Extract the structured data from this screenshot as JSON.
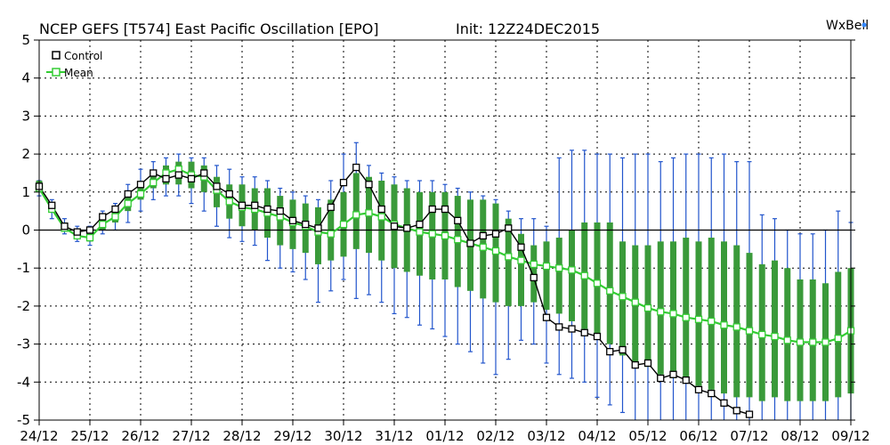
{
  "header": {
    "title": "NCEP GEFS [T574] East Pacific Oscillation [EPO]",
    "init": "Init: 12Z24DEC2015",
    "brand": "WxBell"
  },
  "colors": {
    "control": "#000000",
    "mean": "#33cc33",
    "spread_bar": "#3a9a3a",
    "whisker": "#2255cc",
    "grid": "#000000"
  },
  "legend": {
    "control_label": "Control",
    "mean_label": "Mean"
  },
  "chart_data": {
    "type": "line",
    "title": "NCEP GEFS [T574] East Pacific Oscillation [EPO]",
    "xlabel": "",
    "ylabel": "",
    "xlim": [
      0,
      64
    ],
    "ylim": [
      -5,
      5
    ],
    "grid": true,
    "legend_position": "top-left",
    "x_ticks": [
      {
        "x": 0,
        "label": "24/12"
      },
      {
        "x": 4,
        "label": "25/12"
      },
      {
        "x": 8,
        "label": "26/12"
      },
      {
        "x": 12,
        "label": "27/12"
      },
      {
        "x": 16,
        "label": "28/12"
      },
      {
        "x": 20,
        "label": "29/12"
      },
      {
        "x": 24,
        "label": "30/12"
      },
      {
        "x": 28,
        "label": "31/12"
      },
      {
        "x": 32,
        "label": "01/12"
      },
      {
        "x": 36,
        "label": "02/12"
      },
      {
        "x": 40,
        "label": "03/12"
      },
      {
        "x": 44,
        "label": "04/12"
      },
      {
        "x": 48,
        "label": "05/12"
      },
      {
        "x": 52,
        "label": "06/12"
      },
      {
        "x": 56,
        "label": "07/12"
      },
      {
        "x": 60,
        "label": "08/12"
      },
      {
        "x": 64,
        "label": "09/12"
      }
    ],
    "y_ticks": [
      -5,
      -4,
      -3,
      -2,
      -1,
      0,
      1,
      2,
      3,
      4,
      5
    ],
    "series": [
      {
        "name": "Control",
        "x": [
          0,
          1,
          2,
          3,
          4,
          5,
          6,
          7,
          8,
          9,
          10,
          11,
          12,
          13,
          14,
          15,
          16,
          17,
          18,
          19,
          20,
          21,
          22,
          23,
          24,
          25,
          26,
          27,
          28,
          29,
          30,
          31,
          32,
          33,
          34,
          35,
          36,
          37,
          38,
          39,
          40,
          41,
          42,
          43,
          44,
          45,
          46,
          47,
          48,
          49,
          50,
          51,
          52,
          53,
          54,
          55,
          56
        ],
        "values": [
          1.15,
          0.65,
          0.1,
          -0.05,
          0.0,
          0.35,
          0.55,
          0.95,
          1.2,
          1.5,
          1.35,
          1.45,
          1.35,
          1.5,
          1.15,
          0.95,
          0.65,
          0.65,
          0.55,
          0.5,
          0.25,
          0.15,
          0.05,
          0.6,
          1.25,
          1.65,
          1.2,
          0.55,
          0.1,
          0.05,
          0.15,
          0.55,
          0.55,
          0.25,
          -0.35,
          -0.15,
          -0.1,
          0.05,
          -0.45,
          -1.25,
          -2.3,
          -2.55,
          -2.6,
          -2.7,
          -2.8,
          -3.2,
          -3.15,
          -3.55,
          -3.5,
          -3.9,
          -3.8,
          -3.95,
          -4.2,
          -4.3,
          -4.55,
          -4.75,
          -4.85
        ]
      },
      {
        "name": "Mean",
        "x": [
          0,
          1,
          2,
          3,
          4,
          5,
          6,
          7,
          8,
          9,
          10,
          11,
          12,
          13,
          14,
          15,
          16,
          17,
          18,
          19,
          20,
          21,
          22,
          23,
          24,
          25,
          26,
          27,
          28,
          29,
          30,
          31,
          32,
          33,
          34,
          35,
          36,
          37,
          38,
          39,
          40,
          41,
          42,
          43,
          44,
          45,
          46,
          47,
          48,
          49,
          50,
          51,
          52,
          53,
          54,
          55,
          56,
          57,
          58,
          59,
          60,
          61,
          62,
          63,
          64
        ],
        "values": [
          1.1,
          0.55,
          0.05,
          -0.15,
          -0.2,
          0.15,
          0.35,
          0.7,
          0.95,
          1.25,
          1.5,
          1.6,
          1.45,
          1.4,
          1.05,
          0.75,
          0.6,
          0.55,
          0.45,
          0.35,
          0.2,
          0.1,
          -0.05,
          -0.1,
          0.15,
          0.4,
          0.45,
          0.35,
          0.15,
          0.05,
          -0.05,
          -0.1,
          -0.15,
          -0.25,
          -0.35,
          -0.45,
          -0.55,
          -0.7,
          -0.8,
          -0.9,
          -0.95,
          -1.0,
          -1.05,
          -1.2,
          -1.4,
          -1.6,
          -1.75,
          -1.9,
          -2.05,
          -2.15,
          -2.2,
          -2.3,
          -2.35,
          -2.4,
          -2.5,
          -2.55,
          -2.65,
          -2.75,
          -2.8,
          -2.9,
          -2.95,
          -2.95,
          -2.95,
          -2.85,
          -2.65
        ]
      }
    ],
    "spread": {
      "x": [
        0,
        1,
        2,
        3,
        4,
        5,
        6,
        7,
        8,
        9,
        10,
        11,
        12,
        13,
        14,
        15,
        16,
        17,
        18,
        19,
        20,
        21,
        22,
        23,
        24,
        25,
        26,
        27,
        28,
        29,
        30,
        31,
        32,
        33,
        34,
        35,
        36,
        37,
        38,
        39,
        40,
        41,
        42,
        43,
        44,
        45,
        46,
        47,
        48,
        49,
        50,
        51,
        52,
        53,
        54,
        55,
        56,
        57,
        58,
        59,
        60,
        61,
        62,
        63,
        64
      ],
      "box_low": [
        1.0,
        0.5,
        0.0,
        -0.2,
        -0.3,
        0.0,
        0.2,
        0.5,
        0.8,
        1.1,
        1.2,
        1.2,
        1.1,
        1.0,
        0.6,
        0.3,
        0.1,
        0.0,
        -0.2,
        -0.4,
        -0.5,
        -0.6,
        -0.9,
        -0.8,
        -0.7,
        -0.5,
        -0.6,
        -0.8,
        -1.0,
        -1.1,
        -1.2,
        -1.3,
        -1.3,
        -1.5,
        -1.6,
        -1.8,
        -1.9,
        -2.0,
        -2.0,
        -1.9,
        -2.1,
        -2.2,
        -2.4,
        -2.6,
        -2.8,
        -3.0,
        -3.3,
        -3.5,
        -3.6,
        -3.8,
        -3.9,
        -4.0,
        -4.1,
        -4.2,
        -4.3,
        -4.4,
        -4.4,
        -4.5,
        -4.4,
        -4.5,
        -4.5,
        -4.5,
        -4.5,
        -4.4,
        -4.3
      ],
      "box_high": [
        1.3,
        0.7,
        0.2,
        0.0,
        0.0,
        0.3,
        0.5,
        0.9,
        1.2,
        1.5,
        1.7,
        1.8,
        1.8,
        1.7,
        1.4,
        1.2,
        1.2,
        1.1,
        1.1,
        0.9,
        0.8,
        0.7,
        0.6,
        0.8,
        1.0,
        1.5,
        1.4,
        1.3,
        1.2,
        1.1,
        1.0,
        1.0,
        1.0,
        0.9,
        0.8,
        0.8,
        0.7,
        0.3,
        -0.1,
        -0.4,
        -0.3,
        -0.2,
        0.0,
        0.2,
        0.2,
        0.2,
        -0.3,
        -0.4,
        -0.4,
        -0.3,
        -0.3,
        -0.2,
        -0.3,
        -0.2,
        -0.3,
        -0.4,
        -0.6,
        -0.9,
        -0.8,
        -1.0,
        -1.3,
        -1.3,
        -1.4,
        -1.1,
        -1.0
      ],
      "whisker_low": [
        0.9,
        0.3,
        -0.1,
        -0.3,
        -0.4,
        -0.1,
        0.0,
        0.2,
        0.5,
        0.8,
        0.9,
        0.9,
        0.7,
        0.5,
        0.1,
        -0.2,
        -0.3,
        -0.4,
        -0.8,
        -1.0,
        -1.1,
        -1.3,
        -1.9,
        -1.6,
        -1.3,
        -1.8,
        -1.7,
        -1.9,
        -2.2,
        -2.3,
        -2.5,
        -2.6,
        -2.8,
        -3.0,
        -3.2,
        -3.5,
        -3.8,
        -3.4,
        -2.9,
        -3.0,
        -3.5,
        -3.8,
        -3.9,
        -4.0,
        -4.4,
        -4.6,
        -4.8,
        -5.0,
        -5.0,
        -5.0,
        -5.0,
        -5.0,
        -5.0,
        -5.0,
        -5.0,
        -5.0,
        -5.0,
        -5.0,
        -5.0,
        -5.0,
        -5.0,
        -5.0,
        -5.0,
        -5.0,
        -5.0
      ],
      "whisker_high": [
        1.3,
        0.8,
        0.3,
        0.1,
        0.1,
        0.5,
        0.7,
        1.2,
        1.6,
        1.8,
        1.9,
        2.0,
        1.9,
        1.9,
        1.7,
        1.6,
        1.4,
        1.4,
        1.3,
        1.1,
        1.0,
        0.9,
        0.8,
        1.3,
        2.0,
        2.3,
        1.7,
        1.5,
        1.4,
        1.3,
        1.3,
        1.3,
        1.2,
        1.1,
        1.0,
        0.9,
        0.8,
        0.5,
        0.3,
        0.3,
        0.1,
        1.9,
        2.1,
        2.1,
        2.0,
        2.0,
        1.9,
        2.0,
        2.0,
        1.8,
        1.9,
        2.0,
        2.0,
        1.9,
        2.0,
        1.8,
        1.8,
        0.4,
        0.3,
        0.0,
        -0.1,
        -0.1,
        0.0,
        0.5,
        0.2
      ]
    }
  }
}
